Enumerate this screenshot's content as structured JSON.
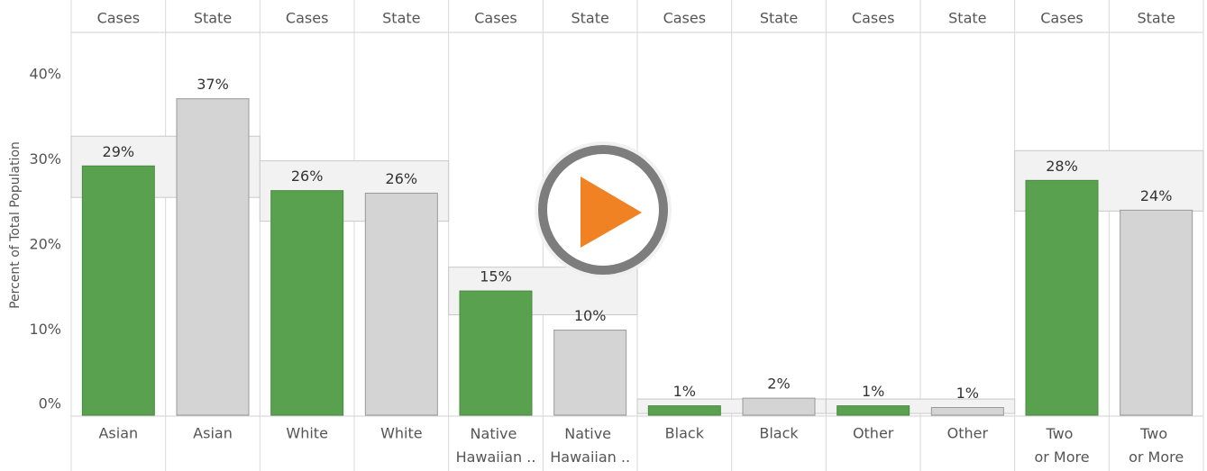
{
  "chart_data": {
    "type": "bar",
    "y_axis_label": "Percent of Total Population",
    "categories": [
      "Asian",
      "White",
      "Native Hawaiian ..",
      "Black",
      "Other",
      "Two or More"
    ],
    "series": [
      {
        "name": "Cases",
        "color": "#59a14f",
        "values": [
          29.3,
          26.4,
          14.6,
          1.1,
          1.1,
          27.6
        ],
        "value_labels": [
          "29%",
          "26%",
          "15%",
          "1%",
          "1%",
          "28%"
        ]
      },
      {
        "name": "State",
        "color": "#d4d4d4",
        "values": [
          37.2,
          26.1,
          10,
          2,
          0.9,
          24.1
        ],
        "value_labels": [
          "37%",
          "26%",
          "10%",
          "2%",
          "1%",
          "24%"
        ]
      }
    ],
    "bands": [
      [
        25.6,
        32.8
      ],
      [
        22.8,
        29.9
      ],
      [
        11.8,
        17.4
      ],
      [
        0.2,
        1.9
      ],
      [
        0.2,
        1.9
      ],
      [
        24,
        31.1
      ]
    ],
    "ylim": [
      0,
      45
    ],
    "yticks": [
      {
        "value": 0,
        "label": "0%"
      },
      {
        "value": 10,
        "label": "10%"
      },
      {
        "value": 20,
        "label": "20%"
      },
      {
        "value": 30,
        "label": "30%"
      },
      {
        "value": 40,
        "label": "40%"
      }
    ]
  }
}
